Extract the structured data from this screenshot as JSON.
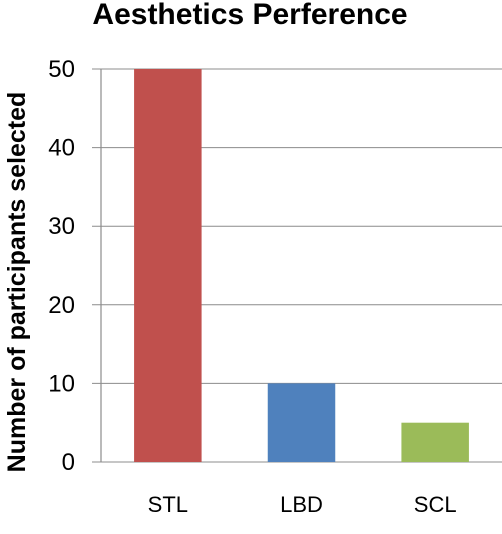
{
  "chart_data": {
    "type": "bar",
    "title": "Aesthetics Perference",
    "xlabel": "",
    "ylabel": "Number of participants selected",
    "categories": [
      "STL",
      "LBD",
      "SCL"
    ],
    "values": [
      50,
      10,
      5
    ],
    "bar_colors": [
      "#C0504D",
      "#4F81BD",
      "#9BBB59"
    ],
    "ylim": [
      0,
      50
    ],
    "yticks": [
      0,
      10,
      20,
      30,
      40,
      50
    ],
    "grid": true,
    "legend": "none"
  }
}
